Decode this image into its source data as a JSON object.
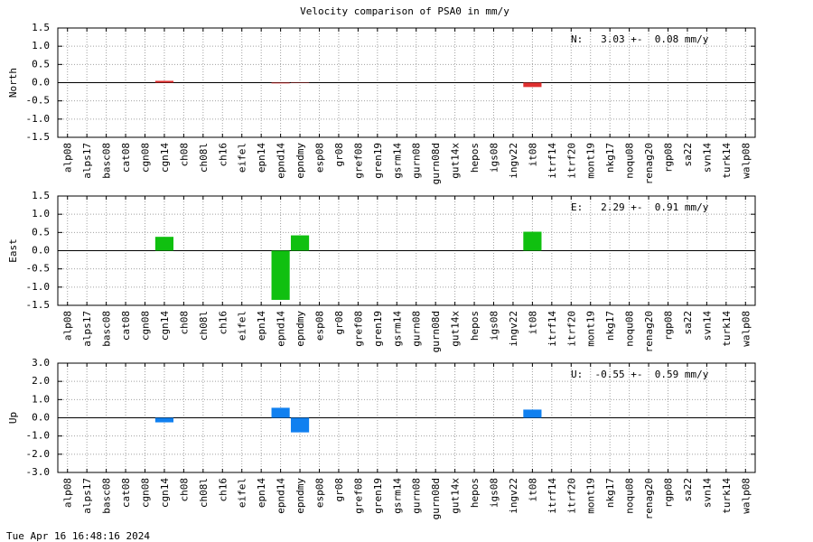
{
  "title": "Velocity comparison of PSA0 in mm/y",
  "footer": "Tue Apr 16 16:48:16 2024",
  "chart_data": [
    {
      "type": "bar",
      "ylabel": "North",
      "annotation": "N:   3.03 +-  0.08 mm/y",
      "color": "#e03030",
      "grid": true,
      "categories": [
        "alp08",
        "alps17",
        "basc08",
        "cat08",
        "cgn08",
        "cgn14",
        "ch08",
        "ch08l",
        "ch16",
        "eifel",
        "epn14",
        "epnd14",
        "epndmy",
        "esp08",
        "gr08",
        "gref08",
        "gren19",
        "gsrm14",
        "gurn08",
        "gurn08d",
        "gut14x",
        "hepos",
        "igs08",
        "ingv22",
        "it08",
        "itrf14",
        "itrf20",
        "mont19",
        "nkg17",
        "noqu08",
        "renag20",
        "rgp08",
        "sa22",
        "svn14",
        "turk14",
        "walp08"
      ],
      "values": [
        null,
        null,
        null,
        null,
        null,
        0.05,
        null,
        null,
        null,
        null,
        null,
        -0.02,
        0.01,
        null,
        null,
        null,
        null,
        null,
        null,
        null,
        null,
        null,
        null,
        null,
        -0.12,
        null,
        null,
        null,
        null,
        null,
        null,
        null,
        null,
        null,
        null,
        null
      ],
      "ylim": [
        -1.5,
        1.5
      ],
      "yticks": [
        1.5,
        {
          "value": 1,
          "label": "1.0"
        },
        0.5,
        {
          "value": 0,
          "label": "0.0"
        },
        -0.5,
        {
          "value": -1,
          "label": "-1.0"
        },
        -1.5
      ]
    },
    {
      "type": "bar",
      "ylabel": "East",
      "annotation": "E:   2.29 +-  0.91 mm/y",
      "color": "#10c010",
      "grid": true,
      "categories": [
        "alp08",
        "alps17",
        "basc08",
        "cat08",
        "cgn08",
        "cgn14",
        "ch08",
        "ch08l",
        "ch16",
        "eifel",
        "epn14",
        "epnd14",
        "epndmy",
        "esp08",
        "gr08",
        "gref08",
        "gren19",
        "gsrm14",
        "gurn08",
        "gurn08d",
        "gut14x",
        "hepos",
        "igs08",
        "ingv22",
        "it08",
        "itrf14",
        "itrf20",
        "mont19",
        "nkg17",
        "noqu08",
        "renag20",
        "rgp08",
        "sa22",
        "svn14",
        "turk14",
        "walp08"
      ],
      "values": [
        null,
        null,
        null,
        null,
        null,
        0.38,
        null,
        null,
        null,
        null,
        null,
        -1.35,
        0.42,
        null,
        null,
        null,
        null,
        null,
        null,
        null,
        null,
        null,
        null,
        null,
        0.52,
        null,
        null,
        null,
        null,
        null,
        null,
        null,
        null,
        null,
        null,
        null
      ],
      "ylim": [
        -1.5,
        1.5
      ],
      "yticks": [
        1.5,
        {
          "value": 1,
          "label": "1.0"
        },
        0.5,
        {
          "value": 0,
          "label": "0.0"
        },
        -0.5,
        {
          "value": -1,
          "label": "-1.0"
        },
        -1.5
      ]
    },
    {
      "type": "bar",
      "ylabel": "Up",
      "annotation": "U:  -0.55 +-  0.59 mm/y",
      "color": "#1080f0",
      "grid": true,
      "categories": [
        "alp08",
        "alps17",
        "basc08",
        "cat08",
        "cgn08",
        "cgn14",
        "ch08",
        "ch08l",
        "ch16",
        "eifel",
        "epn14",
        "epnd14",
        "epndmy",
        "esp08",
        "gr08",
        "gref08",
        "gren19",
        "gsrm14",
        "gurn08",
        "gurn08d",
        "gut14x",
        "hepos",
        "igs08",
        "ingv22",
        "it08",
        "itrf14",
        "itrf20",
        "mont19",
        "nkg17",
        "noqu08",
        "renag20",
        "rgp08",
        "sa22",
        "svn14",
        "turk14",
        "walp08"
      ],
      "values": [
        null,
        null,
        null,
        null,
        null,
        -0.25,
        null,
        null,
        null,
        null,
        null,
        0.55,
        -0.8,
        null,
        null,
        null,
        null,
        null,
        null,
        null,
        null,
        null,
        null,
        null,
        0.45,
        null,
        null,
        null,
        null,
        null,
        null,
        null,
        null,
        null,
        null,
        null
      ],
      "ylim": [
        -3,
        3
      ],
      "yticks": [
        {
          "value": 3,
          "label": "3.0"
        },
        {
          "value": 2,
          "label": "2.0"
        },
        {
          "value": 1,
          "label": "1.0"
        },
        {
          "value": 0,
          "label": "0.0"
        },
        {
          "value": -1,
          "label": "-1.0"
        },
        {
          "value": -2,
          "label": "-2.0"
        },
        {
          "value": -3,
          "label": "-3.0"
        }
      ]
    }
  ]
}
